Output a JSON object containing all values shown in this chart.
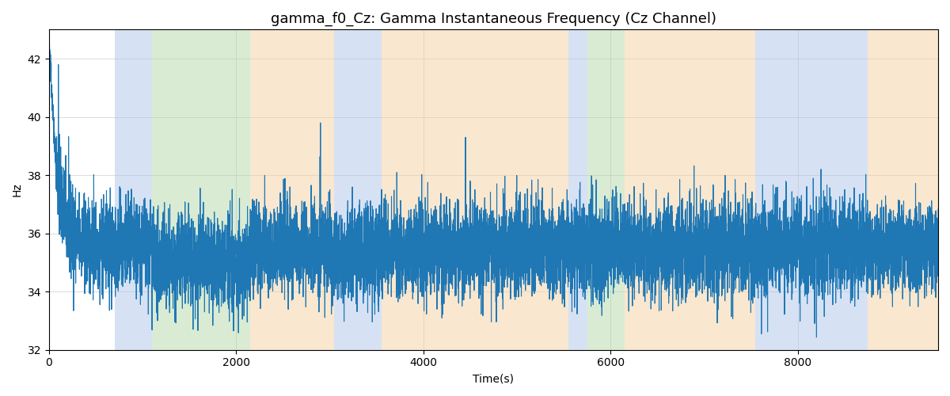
{
  "title": "gamma_f0_Cz: Gamma Instantaneous Frequency (Cz Channel)",
  "xlabel": "Time(s)",
  "ylabel": "Hz",
  "xlim": [
    0,
    9500
  ],
  "ylim": [
    32,
    43
  ],
  "yticks": [
    32,
    34,
    36,
    38,
    40,
    42
  ],
  "xticks": [
    0,
    2000,
    4000,
    6000,
    8000
  ],
  "line_color": "#1f77b4",
  "line_width": 0.8,
  "grid_color": "#cccccc",
  "title_fontsize": 13,
  "bands": [
    {
      "xmin": 700,
      "xmax": 1100,
      "color": "#aec6e8",
      "alpha": 0.5
    },
    {
      "xmin": 1100,
      "xmax": 2150,
      "color": "#b5d9a8",
      "alpha": 0.5
    },
    {
      "xmin": 2150,
      "xmax": 3050,
      "color": "#f5d0a0",
      "alpha": 0.5
    },
    {
      "xmin": 3050,
      "xmax": 3550,
      "color": "#aec6e8",
      "alpha": 0.5
    },
    {
      "xmin": 3550,
      "xmax": 5550,
      "color": "#f5d0a0",
      "alpha": 0.5
    },
    {
      "xmin": 5550,
      "xmax": 5750,
      "color": "#aec6e8",
      "alpha": 0.5
    },
    {
      "xmin": 5750,
      "xmax": 6150,
      "color": "#b5d9a8",
      "alpha": 0.5
    },
    {
      "xmin": 6150,
      "xmax": 7550,
      "color": "#f5d0a0",
      "alpha": 0.5
    },
    {
      "xmin": 7550,
      "xmax": 8750,
      "color": "#aec6e8",
      "alpha": 0.5
    },
    {
      "xmin": 8750,
      "xmax": 9500,
      "color": "#f5d0a0",
      "alpha": 0.5
    }
  ],
  "seed": 42,
  "n_points": 9500,
  "base_freq": 35.5,
  "noise_std": 0.8
}
